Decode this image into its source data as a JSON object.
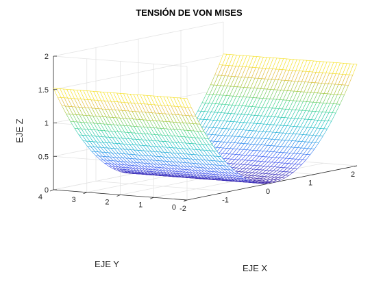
{
  "chart_data": {
    "type": "surface",
    "title": "TENSIÓN DE VON MISES",
    "xlabel": "EJE X",
    "ylabel": "EJE Y",
    "zlabel": "EJE Z",
    "xlim": [
      -2,
      2
    ],
    "ylim": [
      0,
      4
    ],
    "zlim": [
      0,
      2
    ],
    "x_ticks": [
      "-2",
      "-1",
      "0",
      "1",
      "2"
    ],
    "y_ticks": [
      "0",
      "1",
      "2",
      "3",
      "4"
    ],
    "z_ticks": [
      "0",
      "0.5",
      "1",
      "1.5",
      "2"
    ],
    "surface": {
      "formula": "z = 0.38 * x^2",
      "x_range": [
        -2,
        2
      ],
      "y_range": [
        0,
        4
      ],
      "grid_x": 41,
      "grid_y": 41,
      "z_at_x_minus_2": 1.52,
      "z_at_x_0": 0,
      "z_at_x_2": 1.52,
      "colormap": "parula"
    },
    "grid": true,
    "box": true
  }
}
